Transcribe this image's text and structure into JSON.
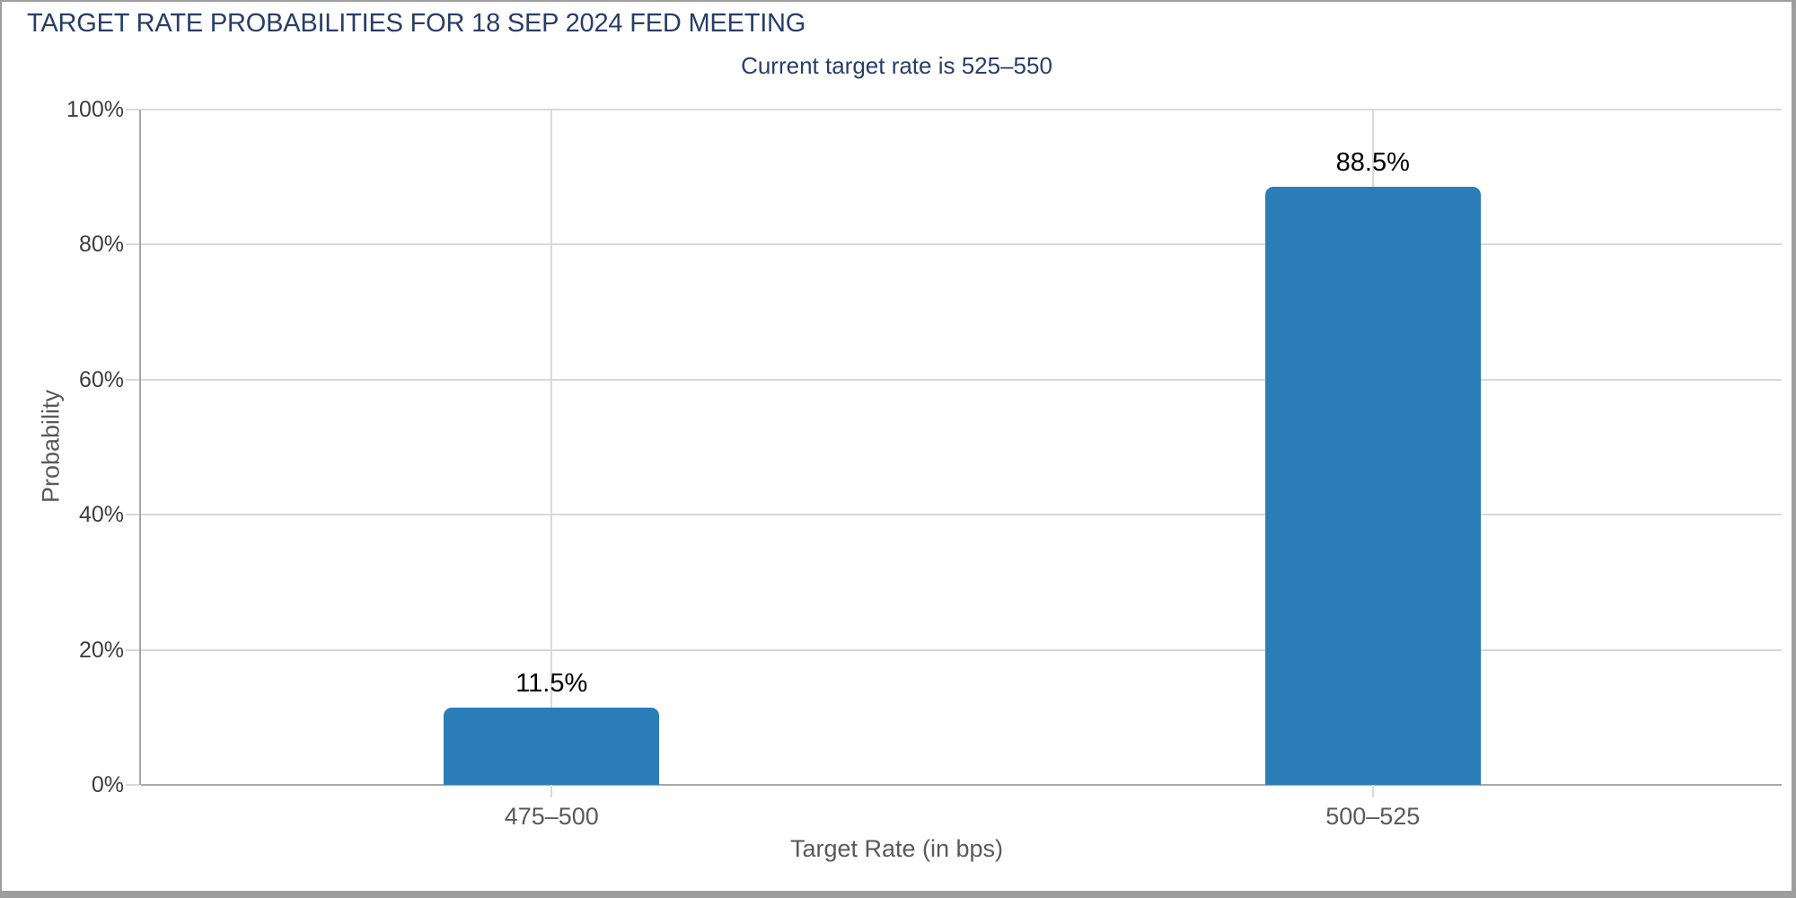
{
  "colors": {
    "title_navy": "#283e66",
    "bar_blue": "#2b7db7",
    "gridline": "#d9d9d9",
    "axis_line": "#a8a8a8",
    "tick_label": "#3d3d3d",
    "muted_label": "#595959",
    "data_label": "#000000",
    "border_gray": "#9e9e9e"
  },
  "chart_data": {
    "type": "bar",
    "title": "TARGET RATE PROBABILITIES FOR 18 SEP 2024 FED MEETING",
    "subtitle": "Current target rate is 525–550",
    "categories": [
      "475–500",
      "500–525"
    ],
    "values": [
      11.5,
      88.5
    ],
    "value_labels": [
      "11.5%",
      "88.5%"
    ],
    "xlabel": "Target Rate (in bps)",
    "ylabel": "Probability",
    "ylim": [
      0,
      100
    ],
    "yticks": [
      0,
      20,
      40,
      60,
      80,
      100
    ],
    "ytick_labels": [
      "0%",
      "20%",
      "40%",
      "60%",
      "80%",
      "100%"
    ],
    "grid": true,
    "legend": false,
    "bar_color": "#2b7db7"
  }
}
